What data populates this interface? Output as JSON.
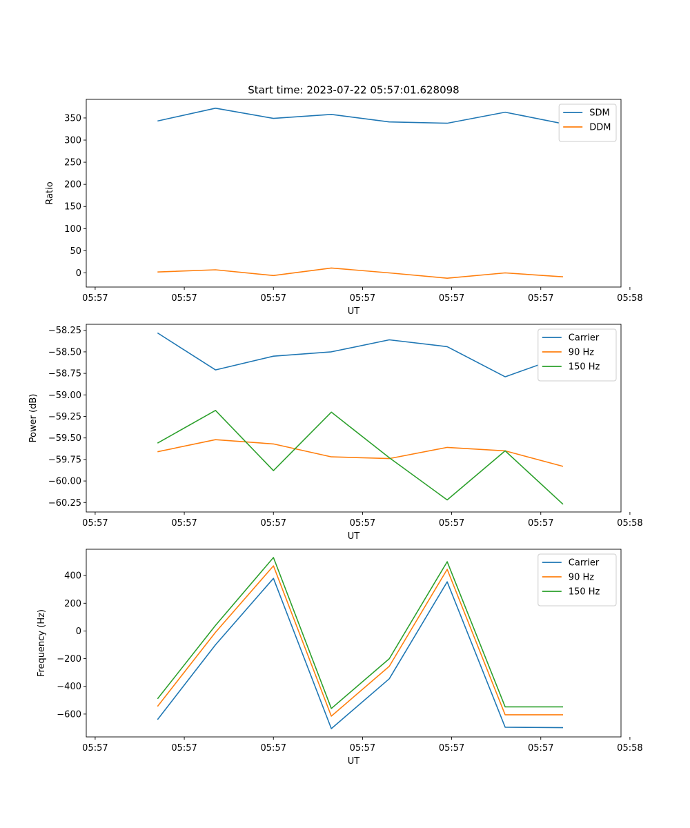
{
  "figure_title": "Start time: 2023-07-22 05:57:01.628098",
  "chart_data": [
    {
      "type": "line",
      "title": "Start time: 2023-07-22 05:57:01.628098",
      "xlabel": "UT",
      "ylabel": "Ratio",
      "x": [
        0.7,
        1.35,
        2.0,
        2.65,
        3.3,
        3.95,
        4.6,
        5.25
      ],
      "xlim": [
        -0.1,
        5.9
      ],
      "xticks": [
        0,
        1,
        2,
        3,
        4,
        5,
        6
      ],
      "xtick_labels": [
        "05:57",
        "05:57",
        "05:57",
        "05:57",
        "05:57",
        "05:57",
        "05:58"
      ],
      "ylim": [
        -32,
        392
      ],
      "yticks": [
        0,
        50,
        100,
        150,
        200,
        250,
        300,
        350
      ],
      "ytick_labels": [
        "0",
        "50",
        "100",
        "150",
        "200",
        "250",
        "300",
        "350"
      ],
      "legend_position": "top-right",
      "series": [
        {
          "name": "SDM",
          "color": "#1f77b4",
          "values": [
            343,
            372,
            349,
            358,
            341,
            338,
            363,
            337
          ]
        },
        {
          "name": "DDM",
          "color": "#ff7f0e",
          "values": [
            2,
            7,
            -6,
            11,
            0,
            -12,
            0,
            -9
          ]
        }
      ]
    },
    {
      "type": "line",
      "title": "",
      "xlabel": "UT",
      "ylabel": "Power (dB)",
      "x": [
        0.7,
        1.35,
        2.0,
        2.65,
        3.3,
        3.95,
        4.6,
        5.25
      ],
      "xlim": [
        -0.1,
        5.9
      ],
      "xticks": [
        0,
        1,
        2,
        3,
        4,
        5,
        6
      ],
      "xtick_labels": [
        "05:57",
        "05:57",
        "05:57",
        "05:57",
        "05:57",
        "05:57",
        "05:58"
      ],
      "ylim": [
        -60.36,
        -58.18
      ],
      "yticks": [
        -58.25,
        -58.5,
        -58.75,
        -59.0,
        -59.25,
        -59.5,
        -59.75,
        -60.0,
        -60.25
      ],
      "ytick_labels": [
        "−58.25",
        "−58.50",
        "−58.75",
        "−59.00",
        "−59.25",
        "−59.50",
        "−59.75",
        "−60.00",
        "−60.25"
      ],
      "legend_position": "top-right",
      "series": [
        {
          "name": "Carrier",
          "color": "#1f77b4",
          "values": [
            -58.28,
            -58.71,
            -58.55,
            -58.5,
            -58.36,
            -58.44,
            -58.79,
            -58.55
          ]
        },
        {
          "name": "90 Hz",
          "color": "#ff7f0e",
          "values": [
            -59.66,
            -59.52,
            -59.57,
            -59.72,
            -59.74,
            -59.61,
            -59.65,
            -59.83
          ]
        },
        {
          "name": "150 Hz",
          "color": "#2ca02c",
          "values": [
            -59.56,
            -59.18,
            -59.88,
            -59.2,
            -59.73,
            -60.22,
            -59.65,
            -60.27
          ]
        }
      ]
    },
    {
      "type": "line",
      "title": "",
      "xlabel": "UT",
      "ylabel": "Frequency (Hz)",
      "x": [
        0.7,
        1.35,
        2.0,
        2.65,
        3.3,
        3.95,
        4.6,
        5.25
      ],
      "xlim": [
        -0.1,
        5.9
      ],
      "xticks": [
        0,
        1,
        2,
        3,
        4,
        5,
        6
      ],
      "xtick_labels": [
        "05:57",
        "05:57",
        "05:57",
        "05:57",
        "05:57",
        "05:57",
        "05:58"
      ],
      "ylim": [
        -765,
        590
      ],
      "yticks": [
        -600,
        -400,
        -200,
        0,
        200,
        400
      ],
      "ytick_labels": [
        "−600",
        "−400",
        "−200",
        "0",
        "200",
        "400"
      ],
      "legend_position": "top-right",
      "series": [
        {
          "name": "Carrier",
          "color": "#1f77b4",
          "values": [
            -640,
            -100,
            380,
            -705,
            -345,
            355,
            -695,
            -698
          ]
        },
        {
          "name": "90 Hz",
          "color": "#ff7f0e",
          "values": [
            -545,
            -10,
            470,
            -615,
            -255,
            445,
            -605,
            -605
          ]
        },
        {
          "name": "150 Hz",
          "color": "#2ca02c",
          "values": [
            -490,
            40,
            530,
            -560,
            -200,
            500,
            -548,
            -548
          ]
        }
      ]
    }
  ]
}
